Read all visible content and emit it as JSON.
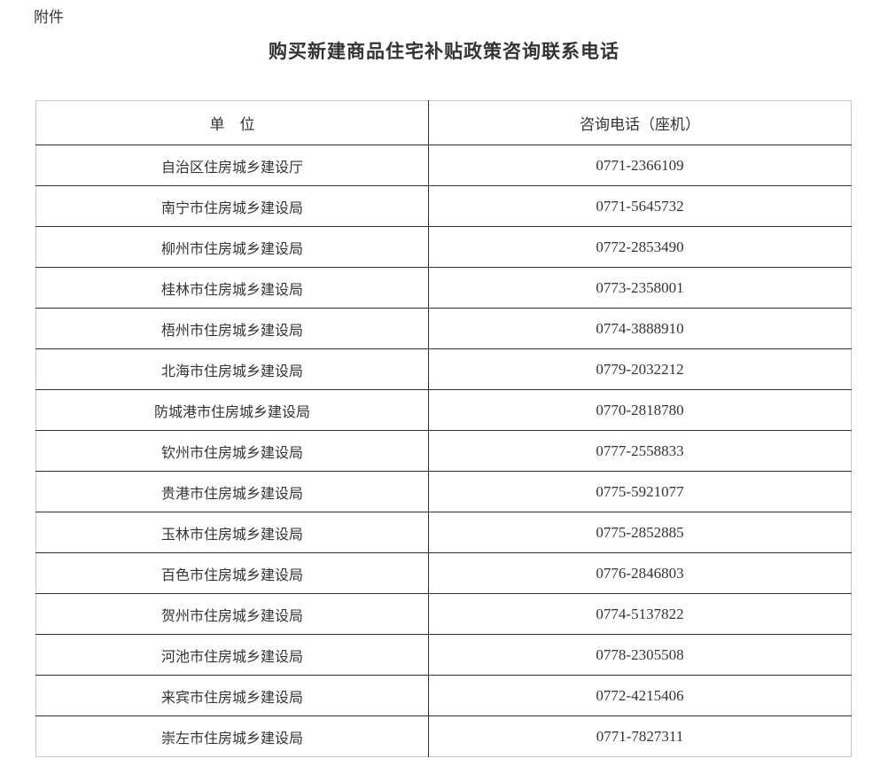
{
  "page": {
    "attachment_label": "附件",
    "title": "购买新建商品住宅补贴政策咨询联系电话"
  },
  "table": {
    "columns": [
      "单　位",
      "咨询电话（座机）"
    ],
    "rows": [
      {
        "unit": "自治区住房城乡建设厅",
        "phone": "0771-2366109"
      },
      {
        "unit": "南宁市住房城乡建设局",
        "phone": "0771-5645732"
      },
      {
        "unit": "柳州市住房城乡建设局",
        "phone": "0772-2853490"
      },
      {
        "unit": "桂林市住房城乡建设局",
        "phone": "0773-2358001"
      },
      {
        "unit": "梧州市住房城乡建设局",
        "phone": "0774-3888910"
      },
      {
        "unit": "北海市住房城乡建设局",
        "phone": "0779-2032212"
      },
      {
        "unit": "防城港市住房城乡建设局",
        "phone": "0770-2818780"
      },
      {
        "unit": "钦州市住房城乡建设局",
        "phone": "0777-2558833"
      },
      {
        "unit": "贵港市住房城乡建设局",
        "phone": "0775-5921077"
      },
      {
        "unit": "玉林市住房城乡建设局",
        "phone": "0775-2852885"
      },
      {
        "unit": "百色市住房城乡建设局",
        "phone": "0776-2846803"
      },
      {
        "unit": "贺州市住房城乡建设局",
        "phone": "0774-5137822"
      },
      {
        "unit": "河池市住房城乡建设局",
        "phone": "0778-2305508"
      },
      {
        "unit": "来宾市住房城乡建设局",
        "phone": "0772-4215406"
      },
      {
        "unit": "崇左市住房城乡建设局",
        "phone": "0771-7827311"
      }
    ],
    "colors": {
      "outer_border": "#c9c9c9",
      "inner_border": "#2f2f2f",
      "text": "#333333"
    }
  }
}
